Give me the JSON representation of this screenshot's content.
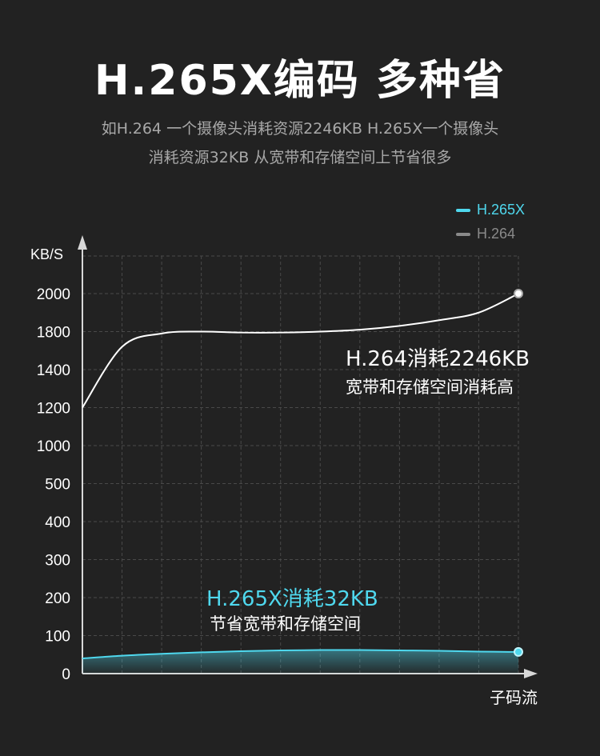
{
  "header": {
    "title": "H.265X编码 多种省",
    "subtitle_line1": "如H.264 一个摄像头消耗资源2246KB H.265X一个摄像头",
    "subtitle_line2": "消耗资源32KB 从宽带和存储空间上节省很多"
  },
  "colors": {
    "h265x": "#4fd8ee",
    "h264": "#8a8a8a",
    "grid": "#4a4a4a",
    "axis": "#d8d8d8"
  },
  "chart_data": {
    "type": "line",
    "ylabel": "KB/S",
    "xlabel": "子码流",
    "y_ticks": [
      "2000",
      "1800",
      "1400",
      "1200",
      "1000",
      "500",
      "400",
      "300",
      "200",
      "100",
      "0"
    ],
    "grid": true,
    "legend_position": "top-right",
    "legend": [
      "H.265X",
      "H.264"
    ],
    "series": [
      {
        "name": "H.264",
        "x": [
          0,
          1,
          2,
          3,
          4,
          5,
          6,
          7,
          8,
          9,
          10,
          11
        ],
        "values": [
          1200,
          1640,
          1780,
          1800,
          1790,
          1790,
          1800,
          1810,
          1830,
          1860,
          1900,
          2000
        ]
      },
      {
        "name": "H.265X",
        "x": [
          0,
          1,
          2,
          3,
          4,
          5,
          6,
          7,
          8,
          9,
          10,
          11
        ],
        "values": [
          40,
          47,
          52,
          56,
          59,
          61,
          62,
          62,
          61,
          60,
          58,
          57
        ]
      }
    ],
    "annotations": {
      "h264_line1": "H.264消耗2246KB",
      "h264_line2": "宽带和存储空间消耗高",
      "h265x_line1": "H.265X消耗32KB",
      "h265x_line2": "节省宽带和存储空间"
    }
  }
}
